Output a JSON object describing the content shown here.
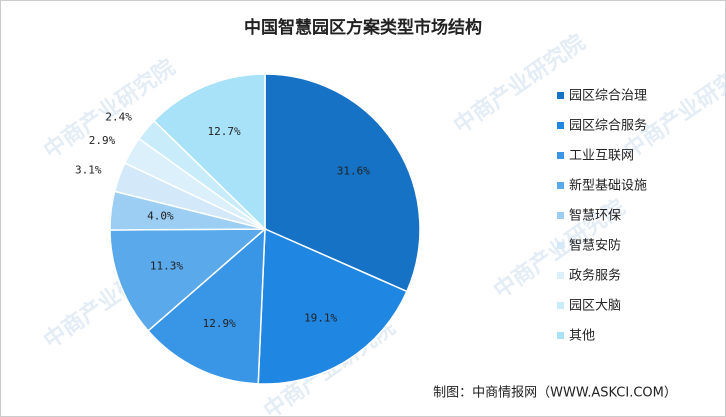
{
  "chart_data": {
    "type": "pie",
    "title": "中国智慧园区方案类型市场结构",
    "categories": [
      "园区综合治理",
      "园区综合服务",
      "工业互联网",
      "新型基础设施",
      "智慧环保",
      "智慧安防",
      "政务服务",
      "园区大脑",
      "其他"
    ],
    "values": [
      31.6,
      19.1,
      12.9,
      11.3,
      4.0,
      3.1,
      2.9,
      2.4,
      12.7
    ],
    "value_labels": [
      "31.6%",
      "19.1%",
      "12.9%",
      "11.3%",
      "4.0%",
      "3.1%",
      "2.9%",
      "2.4%",
      "12.7%"
    ],
    "colors": [
      "#1572c4",
      "#1f86e2",
      "#3995e6",
      "#5aa9ea",
      "#9ccdf2",
      "#d3e9f9",
      "#dcf0fb",
      "#c9ecfb",
      "#a8e2f8"
    ],
    "legend": "right",
    "source": "制图：中商情报网（WWW.ASKCI.COM）",
    "watermark": "中商产业研究院"
  }
}
